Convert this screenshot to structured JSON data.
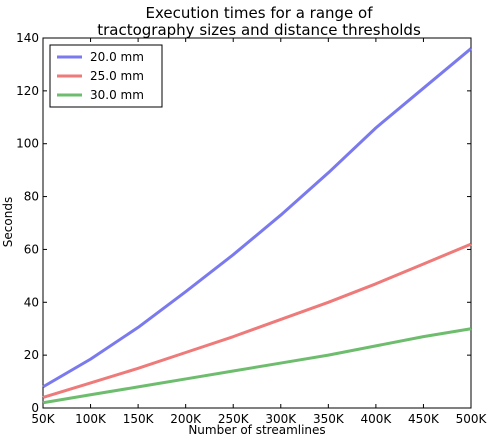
{
  "chart_data": {
    "type": "line",
    "title_lines": [
      "Execution times for a range of",
      "tractography sizes and distance thresholds"
    ],
    "xlabel": "Number of streamlines",
    "ylabel": "Seconds",
    "x": [
      50000,
      100000,
      150000,
      200000,
      250000,
      300000,
      350000,
      400000,
      450000,
      500000
    ],
    "xticks": [
      50000,
      100000,
      150000,
      200000,
      250000,
      300000,
      350000,
      400000,
      450000,
      500000
    ],
    "xtick_labels": [
      "50K",
      "100K",
      "150K",
      "200K",
      "250K",
      "300K",
      "350K",
      "400K",
      "450K",
      "500K"
    ],
    "xlim": [
      50000,
      500000
    ],
    "ylim": [
      0,
      140
    ],
    "yticks": [
      0,
      20,
      40,
      60,
      80,
      100,
      120,
      140
    ],
    "ytick_labels": [
      "0",
      "20",
      "40",
      "60",
      "80",
      "100",
      "120",
      "140"
    ],
    "grid": false,
    "legend_position": "top-left",
    "series": [
      {
        "name": "20.0 mm",
        "color": "#7a7aee",
        "values": [
          8,
          18.5,
          30.5,
          44,
          58,
          73,
          89,
          106,
          121,
          136
        ]
      },
      {
        "name": "25.0 mm",
        "color": "#ee7a7a",
        "values": [
          4,
          9.5,
          15,
          21,
          27,
          33.5,
          40,
          47,
          54.5,
          62
        ]
      },
      {
        "name": "30.0 mm",
        "color": "#6ebd6e",
        "values": [
          2,
          5,
          8,
          11,
          14,
          17,
          20,
          23.5,
          27,
          30
        ]
      }
    ]
  }
}
